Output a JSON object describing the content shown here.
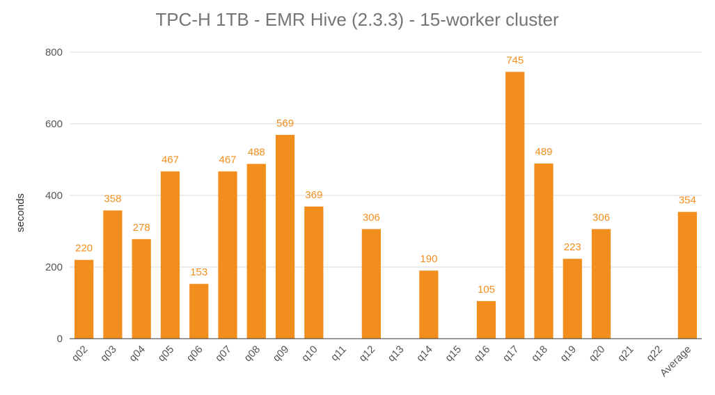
{
  "chart_data": {
    "type": "bar",
    "title": "TPC-H  1TB - EMR Hive (2.3.3) - 15-worker cluster",
    "xlabel": "",
    "ylabel": "seconds",
    "ylim": [
      0,
      800
    ],
    "yticks": [
      0,
      200,
      400,
      600,
      800
    ],
    "grid": true,
    "legend": "none",
    "bar_color": "#f28e1e",
    "categories": [
      "q02",
      "q03",
      "q04",
      "q05",
      "q06",
      "q07",
      "q08",
      "q09",
      "q10",
      "q11",
      "q12",
      "q13",
      "q14",
      "q15",
      "q16",
      "q17",
      "q18",
      "q19",
      "q20",
      "q21",
      "q22",
      "Average"
    ],
    "values": [
      220,
      358,
      278,
      467,
      153,
      467,
      488,
      569,
      369,
      null,
      306,
      null,
      190,
      null,
      105,
      745,
      489,
      223,
      306,
      null,
      null,
      354
    ]
  }
}
